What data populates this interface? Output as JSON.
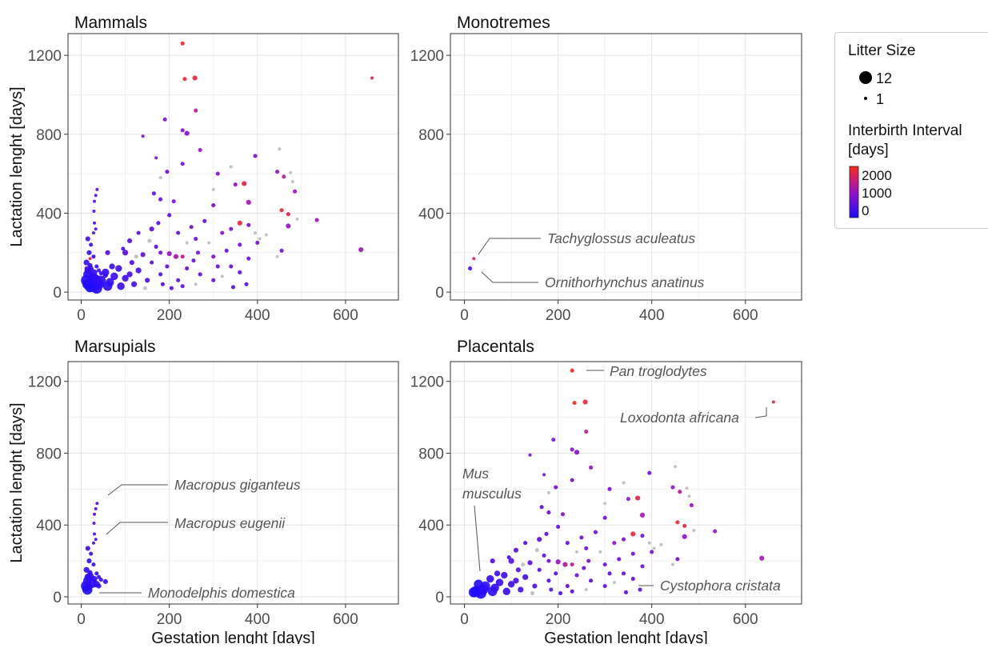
{
  "legend": {
    "size_title": "Litter Size",
    "size_values": [
      "12",
      "1"
    ],
    "color_title_line1": "Interbirth Interval",
    "color_title_line2": "[days]",
    "color_ticks": [
      "2000",
      "1000",
      "0"
    ],
    "colors": {
      "low": "#1a0cff",
      "mid": "#9c10c8",
      "high": "#ff2a1a",
      "missing": "#bebebe"
    }
  },
  "chart_data": [
    {
      "type": "scatter",
      "title": "Mammals",
      "xlabel": "",
      "ylabel": "Lactation lenght [days]",
      "xlim": [
        -30,
        720
      ],
      "ylim": [
        -40,
        1310
      ],
      "xticks": [
        "0",
        "200",
        "400",
        "600"
      ],
      "yticks": [
        "0",
        "400",
        "800",
        "1200"
      ],
      "grid": true,
      "annotations": []
    },
    {
      "type": "scatter",
      "title": "Monotremes",
      "xlabel": "",
      "ylabel": "",
      "xlim": [
        -30,
        720
      ],
      "ylim": [
        -40,
        1310
      ],
      "xticks": [
        "0",
        "200",
        "400",
        "600"
      ],
      "yticks": [
        "0",
        "400",
        "800",
        "1200"
      ],
      "grid": true,
      "points": [
        {
          "x": 20,
          "y": 170,
          "litter": 1,
          "interval": 1700
        },
        {
          "x": 12,
          "y": 120,
          "litter": 2,
          "interval": 400
        }
      ],
      "annotations": [
        {
          "text": "Tachyglossus aculeatus",
          "x": 20,
          "y": 170
        },
        {
          "text": "Ornithorhynchus anatinus",
          "x": 12,
          "y": 120
        }
      ]
    },
    {
      "type": "scatter",
      "title": "Marsupials",
      "xlabel": "Gestation lenght [days]",
      "ylabel": "Lactation lenght [days]",
      "xlim": [
        -30,
        720
      ],
      "ylim": [
        -40,
        1310
      ],
      "xticks": [
        "0",
        "200",
        "400",
        "600"
      ],
      "yticks": [
        "0",
        "400",
        "800",
        "1200"
      ],
      "grid": true,
      "points": [
        {
          "x": 36,
          "y": 520,
          "litter": 1,
          "interval": 500
        },
        {
          "x": 33,
          "y": 490,
          "litter": 1,
          "interval": 480
        },
        {
          "x": 30,
          "y": 460,
          "litter": 1,
          "interval": 520
        },
        {
          "x": 29,
          "y": 410,
          "litter": 1,
          "interval": 460
        },
        {
          "x": 30,
          "y": 350,
          "litter": 1,
          "interval": 420
        },
        {
          "x": 33,
          "y": 320,
          "litter": 1,
          "interval": 400
        },
        {
          "x": 28,
          "y": 300,
          "litter": 1,
          "interval": 350
        },
        {
          "x": 15,
          "y": 270,
          "litter": 3,
          "interval": 330
        },
        {
          "x": 22,
          "y": 240,
          "litter": 2,
          "interval": 300
        },
        {
          "x": 18,
          "y": 200,
          "litter": 3,
          "interval": 260
        },
        {
          "x": 28,
          "y": 180,
          "litter": 2,
          "interval": 250
        },
        {
          "x": 12,
          "y": 150,
          "litter": 4,
          "interval": 220
        },
        {
          "x": 35,
          "y": 130,
          "litter": 2,
          "interval": 240
        },
        {
          "x": 20,
          "y": 115,
          "litter": 6,
          "interval": 200
        },
        {
          "x": 30,
          "y": 100,
          "litter": 4,
          "interval": 180
        },
        {
          "x": 14,
          "y": 90,
          "litter": 7,
          "interval": 150
        },
        {
          "x": 40,
          "y": 110,
          "litter": 2,
          "interval": 260
        },
        {
          "x": 45,
          "y": 95,
          "litter": 2,
          "interval": 300
        },
        {
          "x": 55,
          "y": 85,
          "litter": 3,
          "interval": 250
        },
        {
          "x": 25,
          "y": 75,
          "litter": 8,
          "interval": 120
        },
        {
          "x": 12,
          "y": 60,
          "litter": 10,
          "interval": 100
        },
        {
          "x": 35,
          "y": 70,
          "litter": 5,
          "interval": 180
        },
        {
          "x": 15,
          "y": 110,
          "litter": 5,
          "interval": 160
        },
        {
          "x": 20,
          "y": 135,
          "litter": 3,
          "interval": 200
        },
        {
          "x": 40,
          "y": 60,
          "litter": 3,
          "interval": 220
        },
        {
          "x": 14,
          "y": 40,
          "litter": 9,
          "interval": 80
        }
      ],
      "annotations": [
        {
          "text": "Macropus giganteus",
          "x": 36,
          "y": 520
        },
        {
          "text": "Macropus eugenii",
          "x": 29,
          "y": 330
        },
        {
          "text": "Monodelphis domestica",
          "x": 14,
          "y": 40
        }
      ]
    },
    {
      "type": "scatter",
      "title": "Placentals",
      "xlabel": "Gestation lenght [days]",
      "ylabel": "",
      "xlim": [
        -30,
        720
      ],
      "ylim": [
        -40,
        1310
      ],
      "xticks": [
        "0",
        "200",
        "400",
        "600"
      ],
      "yticks": [
        "0",
        "400",
        "800",
        "1200"
      ],
      "grid": true,
      "points": [
        {
          "x": 230,
          "y": 1260,
          "litter": 2,
          "interval": 1900
        },
        {
          "x": 235,
          "y": 1080,
          "litter": 2,
          "interval": 1850
        },
        {
          "x": 258,
          "y": 1085,
          "litter": 3,
          "interval": 1800
        },
        {
          "x": 660,
          "y": 1085,
          "litter": 1,
          "interval": 1700
        },
        {
          "x": 260,
          "y": 920,
          "litter": 2,
          "interval": 1300
        },
        {
          "x": 190,
          "y": 875,
          "litter": 2,
          "interval": 800
        },
        {
          "x": 230,
          "y": 820,
          "litter": 2,
          "interval": 900
        },
        {
          "x": 240,
          "y": 805,
          "litter": 3,
          "interval": 850
        },
        {
          "x": 140,
          "y": 790,
          "litter": 1,
          "interval": 700
        },
        {
          "x": 270,
          "y": 720,
          "litter": 2,
          "interval": 1000
        },
        {
          "x": 170,
          "y": 680,
          "litter": 1,
          "interval": 750
        },
        {
          "x": 395,
          "y": 690,
          "litter": 2,
          "interval": 700
        },
        {
          "x": 450,
          "y": 725,
          "litter": 1,
          "interval": null
        },
        {
          "x": 445,
          "y": 610,
          "litter": 2,
          "interval": 900
        },
        {
          "x": 460,
          "y": 585,
          "litter": 2,
          "interval": 1300
        },
        {
          "x": 475,
          "y": 605,
          "litter": 1,
          "interval": null
        },
        {
          "x": 340,
          "y": 635,
          "litter": 1,
          "interval": null
        },
        {
          "x": 230,
          "y": 650,
          "litter": 2,
          "interval": 700
        },
        {
          "x": 195,
          "y": 610,
          "litter": 2,
          "interval": 650
        },
        {
          "x": 310,
          "y": 600,
          "litter": 2,
          "interval": 800
        },
        {
          "x": 370,
          "y": 550,
          "litter": 3,
          "interval": 1700
        },
        {
          "x": 350,
          "y": 545,
          "litter": 2,
          "interval": 900
        },
        {
          "x": 480,
          "y": 560,
          "litter": 1,
          "interval": null
        },
        {
          "x": 485,
          "y": 510,
          "litter": 2,
          "interval": 1000
        },
        {
          "x": 165,
          "y": 500,
          "litter": 2,
          "interval": 500
        },
        {
          "x": 180,
          "y": 470,
          "litter": 2,
          "interval": 600
        },
        {
          "x": 210,
          "y": 460,
          "litter": 2,
          "interval": 750
        },
        {
          "x": 380,
          "y": 455,
          "litter": 3,
          "interval": 1100
        },
        {
          "x": 300,
          "y": 440,
          "litter": 2,
          "interval": 650
        },
        {
          "x": 455,
          "y": 415,
          "litter": 2,
          "interval": 1850
        },
        {
          "x": 470,
          "y": 395,
          "litter": 2,
          "interval": 1700
        },
        {
          "x": 490,
          "y": 370,
          "litter": 1,
          "interval": null
        },
        {
          "x": 535,
          "y": 365,
          "litter": 2,
          "interval": 1000
        },
        {
          "x": 470,
          "y": 335,
          "litter": 3,
          "interval": 950
        },
        {
          "x": 635,
          "y": 215,
          "litter": 3,
          "interval": 1100
        },
        {
          "x": 455,
          "y": 210,
          "litter": 2,
          "interval": 700
        },
        {
          "x": 445,
          "y": 180,
          "litter": 1,
          "interval": null
        },
        {
          "x": 380,
          "y": 340,
          "litter": 2,
          "interval": 700
        },
        {
          "x": 360,
          "y": 350,
          "litter": 3,
          "interval": 1800
        },
        {
          "x": 340,
          "y": 320,
          "litter": 2,
          "interval": 800
        },
        {
          "x": 320,
          "y": 300,
          "litter": 2,
          "interval": 900
        },
        {
          "x": 280,
          "y": 360,
          "litter": 2,
          "interval": 600
        },
        {
          "x": 250,
          "y": 330,
          "litter": 2,
          "interval": 650
        },
        {
          "x": 220,
          "y": 300,
          "litter": 2,
          "interval": 550
        },
        {
          "x": 200,
          "y": 390,
          "litter": 2,
          "interval": 500
        },
        {
          "x": 175,
          "y": 350,
          "litter": 2,
          "interval": 450
        },
        {
          "x": 160,
          "y": 320,
          "litter": 3,
          "interval": 500
        },
        {
          "x": 130,
          "y": 300,
          "litter": 2,
          "interval": 450
        },
        {
          "x": 110,
          "y": 260,
          "litter": 3,
          "interval": 500
        },
        {
          "x": 95,
          "y": 220,
          "litter": 2,
          "interval": 400
        },
        {
          "x": 60,
          "y": 200,
          "litter": 3,
          "interval": 450
        },
        {
          "x": 100,
          "y": 200,
          "litter": 4,
          "interval": 500
        },
        {
          "x": 140,
          "y": 190,
          "litter": 3,
          "interval": 550
        },
        {
          "x": 180,
          "y": 200,
          "litter": 2,
          "interval": 700
        },
        {
          "x": 200,
          "y": 195,
          "litter": 3,
          "interval": 1000
        },
        {
          "x": 230,
          "y": 180,
          "litter": 2,
          "interval": 1300
        },
        {
          "x": 265,
          "y": 200,
          "litter": 2,
          "interval": 700
        },
        {
          "x": 300,
          "y": 180,
          "litter": 2,
          "interval": 650
        },
        {
          "x": 330,
          "y": 210,
          "litter": 2,
          "interval": 600
        },
        {
          "x": 360,
          "y": 240,
          "litter": 2,
          "interval": 700
        },
        {
          "x": 380,
          "y": 170,
          "litter": 2,
          "interval": 650
        },
        {
          "x": 400,
          "y": 250,
          "litter": 2,
          "interval": 700
        },
        {
          "x": 420,
          "y": 290,
          "litter": 1,
          "interval": null
        },
        {
          "x": 340,
          "y": 130,
          "litter": 2,
          "interval": 600
        },
        {
          "x": 360,
          "y": 100,
          "litter": 2,
          "interval": 550
        },
        {
          "x": 375,
          "y": 40,
          "litter": 2,
          "interval": 500
        },
        {
          "x": 345,
          "y": 25,
          "litter": 2,
          "interval": 500
        },
        {
          "x": 300,
          "y": 60,
          "litter": 2,
          "interval": 550
        },
        {
          "x": 270,
          "y": 90,
          "litter": 2,
          "interval": 500
        },
        {
          "x": 240,
          "y": 120,
          "litter": 2,
          "interval": 600
        },
        {
          "x": 220,
          "y": 60,
          "litter": 2,
          "interval": 500
        },
        {
          "x": 205,
          "y": 20,
          "litter": 2,
          "interval": 450
        },
        {
          "x": 180,
          "y": 90,
          "litter": 2,
          "interval": 450
        },
        {
          "x": 160,
          "y": 150,
          "litter": 2,
          "interval": 450
        },
        {
          "x": 150,
          "y": 60,
          "litter": 3,
          "interval": 400
        },
        {
          "x": 130,
          "y": 110,
          "litter": 4,
          "interval": 350
        },
        {
          "x": 115,
          "y": 150,
          "litter": 3,
          "interval": 450
        },
        {
          "x": 100,
          "y": 70,
          "litter": 5,
          "interval": 300
        },
        {
          "x": 85,
          "y": 120,
          "litter": 5,
          "interval": 300
        },
        {
          "x": 75,
          "y": 80,
          "litter": 6,
          "interval": 250
        },
        {
          "x": 65,
          "y": 50,
          "litter": 7,
          "interval": 200
        },
        {
          "x": 55,
          "y": 100,
          "litter": 6,
          "interval": 220
        },
        {
          "x": 45,
          "y": 60,
          "litter": 8,
          "interval": 150
        },
        {
          "x": 40,
          "y": 40,
          "litter": 9,
          "interval": 120
        },
        {
          "x": 30,
          "y": 70,
          "litter": 8,
          "interval": 110
        },
        {
          "x": 25,
          "y": 30,
          "litter": 10,
          "interval": 60
        },
        {
          "x": 20,
          "y": 25,
          "litter": 9,
          "interval": 40
        },
        {
          "x": 35,
          "y": 20,
          "litter": 10,
          "interval": 80
        },
        {
          "x": 60,
          "y": 30,
          "litter": 8,
          "interval": 150
        },
        {
          "x": 90,
          "y": 30,
          "litter": 6,
          "interval": 250
        },
        {
          "x": 120,
          "y": 40,
          "litter": 4,
          "interval": 350
        },
        {
          "x": 145,
          "y": 20,
          "litter": 2,
          "interval": null
        },
        {
          "x": 110,
          "y": 90,
          "litter": 4,
          "interval": 350
        },
        {
          "x": 70,
          "y": 130,
          "litter": 4,
          "interval": 280
        },
        {
          "x": 125,
          "y": 180,
          "litter": 2,
          "interval": null
        },
        {
          "x": 155,
          "y": 260,
          "litter": 2,
          "interval": null
        },
        {
          "x": 170,
          "y": 230,
          "litter": 2,
          "interval": 500
        },
        {
          "x": 240,
          "y": 250,
          "litter": 1,
          "interval": null
        },
        {
          "x": 260,
          "y": 270,
          "litter": 2,
          "interval": 700
        },
        {
          "x": 290,
          "y": 250,
          "litter": 1,
          "interval": null
        },
        {
          "x": 310,
          "y": 130,
          "litter": 2,
          "interval": 550
        },
        {
          "x": 255,
          "y": 160,
          "litter": 2,
          "interval": 600
        },
        {
          "x": 195,
          "y": 130,
          "litter": 2,
          "interval": 500
        },
        {
          "x": 215,
          "y": 180,
          "litter": 3,
          "interval": 1200
        },
        {
          "x": 185,
          "y": 40,
          "litter": 2,
          "interval": 450
        },
        {
          "x": 230,
          "y": 30,
          "litter": 2,
          "interval": 500
        },
        {
          "x": 260,
          "y": 40,
          "litter": 1,
          "interval": null
        },
        {
          "x": 320,
          "y": 80,
          "litter": 1,
          "interval": null
        },
        {
          "x": 395,
          "y": 300,
          "litter": 1,
          "interval": null
        },
        {
          "x": 405,
          "y": 270,
          "litter": 1,
          "interval": null
        },
        {
          "x": 180,
          "y": 580,
          "litter": 1,
          "interval": null
        },
        {
          "x": 300,
          "y": 520,
          "litter": 1,
          "interval": null
        }
      ],
      "annotations": [
        {
          "text": "Pan troglodytes",
          "x": 230,
          "y": 1260
        },
        {
          "text": "Loxodonta africana",
          "x": 660,
          "y": 1085
        },
        {
          "text": "Mus",
          "x": 20,
          "y": 25
        },
        {
          "text": "musculus",
          "x": 20,
          "y": 25
        },
        {
          "text": "Cystophora cristata",
          "x": 345,
          "y": 25
        }
      ]
    }
  ]
}
